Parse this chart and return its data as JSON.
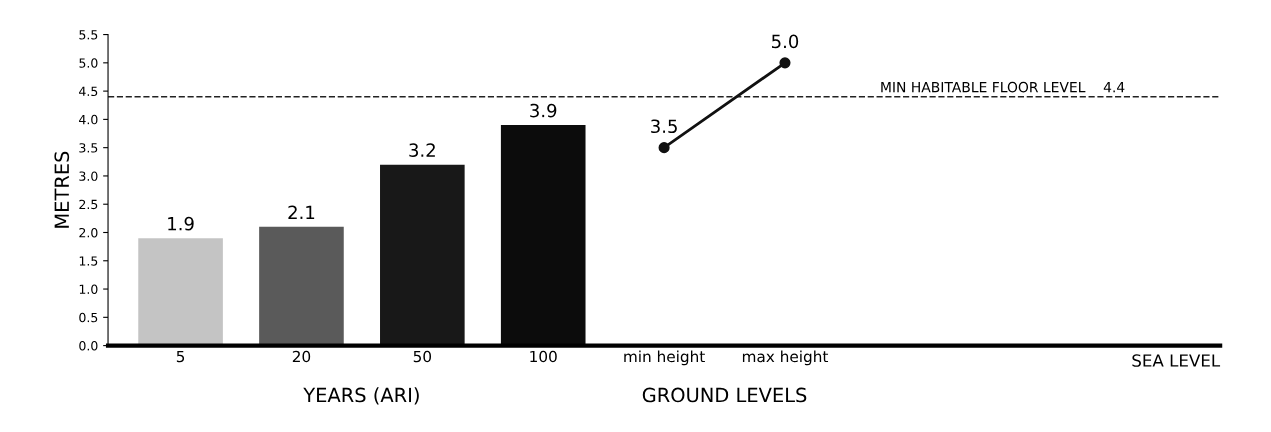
{
  "chart_data": {
    "type": "bar",
    "ylabel": "METRES",
    "categories": [
      "5",
      "20",
      "50",
      "100",
      "min height",
      "max height",
      null,
      null,
      null
    ],
    "series": [
      {
        "colors": [
          "#c4c4c4",
          "#5a5a5a",
          "#181818",
          "#0c0c0c",
          null,
          null,
          null,
          null,
          null
        ],
        "values": [
          1.9,
          2.1,
          3.2,
          3.9,
          null,
          null,
          null,
          null,
          null
        ],
        "value_labels": [
          "1.9",
          "2.1",
          "3.2",
          "3.9",
          null,
          null,
          null,
          null,
          null
        ]
      },
      {
        "type": "line",
        "color": "#111111",
        "marker": "circle",
        "line_style": "solid",
        "values": [
          null,
          null,
          null,
          null,
          3.5,
          5.0,
          null,
          null,
          null
        ],
        "value_labels": [
          null,
          null,
          null,
          null,
          "3.5",
          "5.0",
          null,
          null,
          null
        ]
      }
    ],
    "ylim": [
      0,
      5.5
    ],
    "yticks": [
      {
        "value": 0,
        "label": "0.0"
      },
      {
        "value": 0.5,
        "label": "0.5"
      },
      {
        "value": 1,
        "label": "1.0"
      },
      {
        "value": 1.5,
        "label": "1.5"
      },
      {
        "value": 2,
        "label": "2.0"
      },
      {
        "value": 2.5,
        "label": "2.5"
      },
      {
        "value": 3,
        "label": "3.0"
      },
      {
        "value": 3.5,
        "label": "3.5"
      },
      {
        "value": 4,
        "label": "4.0"
      },
      {
        "value": 4.5,
        "label": "4.5"
      },
      {
        "value": 5,
        "label": "5.0"
      },
      {
        "value": 5.5,
        "label": "5.5"
      }
    ],
    "ref_lines": [
      {
        "axis": "y",
        "value": 4.4,
        "label": "MIN HABITABLE FLOOR LEVEL    4.4",
        "color": "#222222",
        "line_style": "dashed"
      }
    ],
    "annotations": [
      "YEARS (ARI)",
      "GROUND LEVELS",
      "SEA LEVEL"
    ],
    "grid": false,
    "legend": false
  }
}
